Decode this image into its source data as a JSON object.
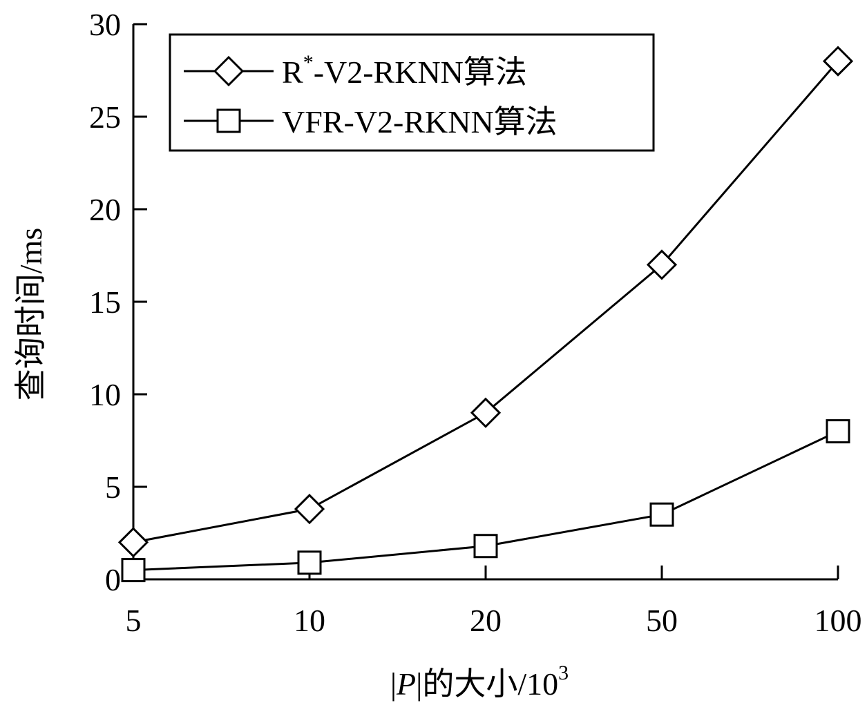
{
  "chart_data": {
    "type": "line",
    "title": "",
    "categories": [
      "5",
      "10",
      "20",
      "50",
      "100"
    ],
    "xlabel": {
      "pre": "|",
      "var": "P",
      "mid": "|的大小/10",
      "sup": "3"
    },
    "ylabel": "查询时间/ms",
    "ylim": [
      0,
      30
    ],
    "yticks": [
      0,
      5,
      10,
      15,
      20,
      25,
      30
    ],
    "grid": false,
    "legend_position": "top-left",
    "series": [
      {
        "name_parts": {
          "main": "R",
          "sup": "*",
          "rest": "-V2-RKNN算法"
        },
        "marker": "diamond",
        "values": [
          2.0,
          3.8,
          9.0,
          17.0,
          28.0
        ]
      },
      {
        "name_parts": {
          "main": "VFR-V2-RKNN算法",
          "sup": "",
          "rest": ""
        },
        "marker": "square",
        "values": [
          0.5,
          0.9,
          1.8,
          3.5,
          8.0
        ]
      }
    ],
    "colors": {
      "line": "#000000",
      "marker_fill": "#ffffff"
    }
  }
}
